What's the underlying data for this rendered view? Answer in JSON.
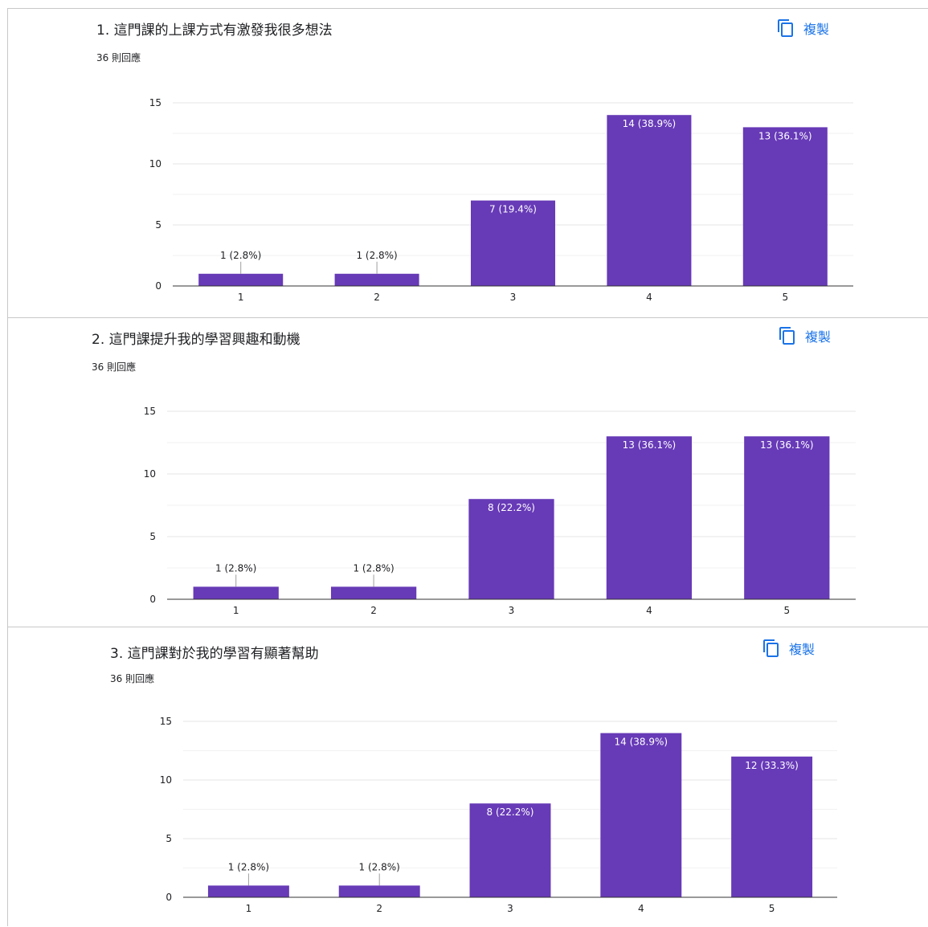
{
  "copy_label": "複製",
  "accent_color": "#673ab7",
  "link_color": "#1a73e8",
  "chart_data": [
    {
      "type": "bar",
      "title": "1. 這門課的上課方式有激發我很多想法",
      "subtitle": "36 則回應",
      "categories": [
        "1",
        "2",
        "3",
        "4",
        "5"
      ],
      "values": [
        1,
        1,
        7,
        14,
        13
      ],
      "data_labels": [
        "1 (2.8%)",
        "1 (2.8%)",
        "7 (19.4%)",
        "14 (38.9%)",
        "13 (36.1%)"
      ],
      "yticks": [
        "0",
        "5",
        "10",
        "15"
      ],
      "ylim": [
        0,
        15
      ],
      "grid": true
    },
    {
      "type": "bar",
      "title": "2. 這門課提升我的學習興趣和動機",
      "subtitle": "36 則回應",
      "categories": [
        "1",
        "2",
        "3",
        "4",
        "5"
      ],
      "values": [
        1,
        1,
        8,
        13,
        13
      ],
      "data_labels": [
        "1 (2.8%)",
        "1 (2.8%)",
        "8 (22.2%)",
        "13 (36.1%)",
        "13 (36.1%)"
      ],
      "yticks": [
        "0",
        "5",
        "10",
        "15"
      ],
      "ylim": [
        0,
        15
      ],
      "grid": true
    },
    {
      "type": "bar",
      "title": "3. 這門課對於我的學習有顯著幫助",
      "subtitle": "36 則回應",
      "categories": [
        "1",
        "2",
        "3",
        "4",
        "5"
      ],
      "values": [
        1,
        1,
        8,
        14,
        12
      ],
      "data_labels": [
        "1 (2.8%)",
        "1 (2.8%)",
        "8 (22.2%)",
        "14 (38.9%)",
        "12 (33.3%)"
      ],
      "yticks": [
        "0",
        "5",
        "10",
        "15"
      ],
      "ylim": [
        0,
        15
      ],
      "grid": true
    }
  ]
}
